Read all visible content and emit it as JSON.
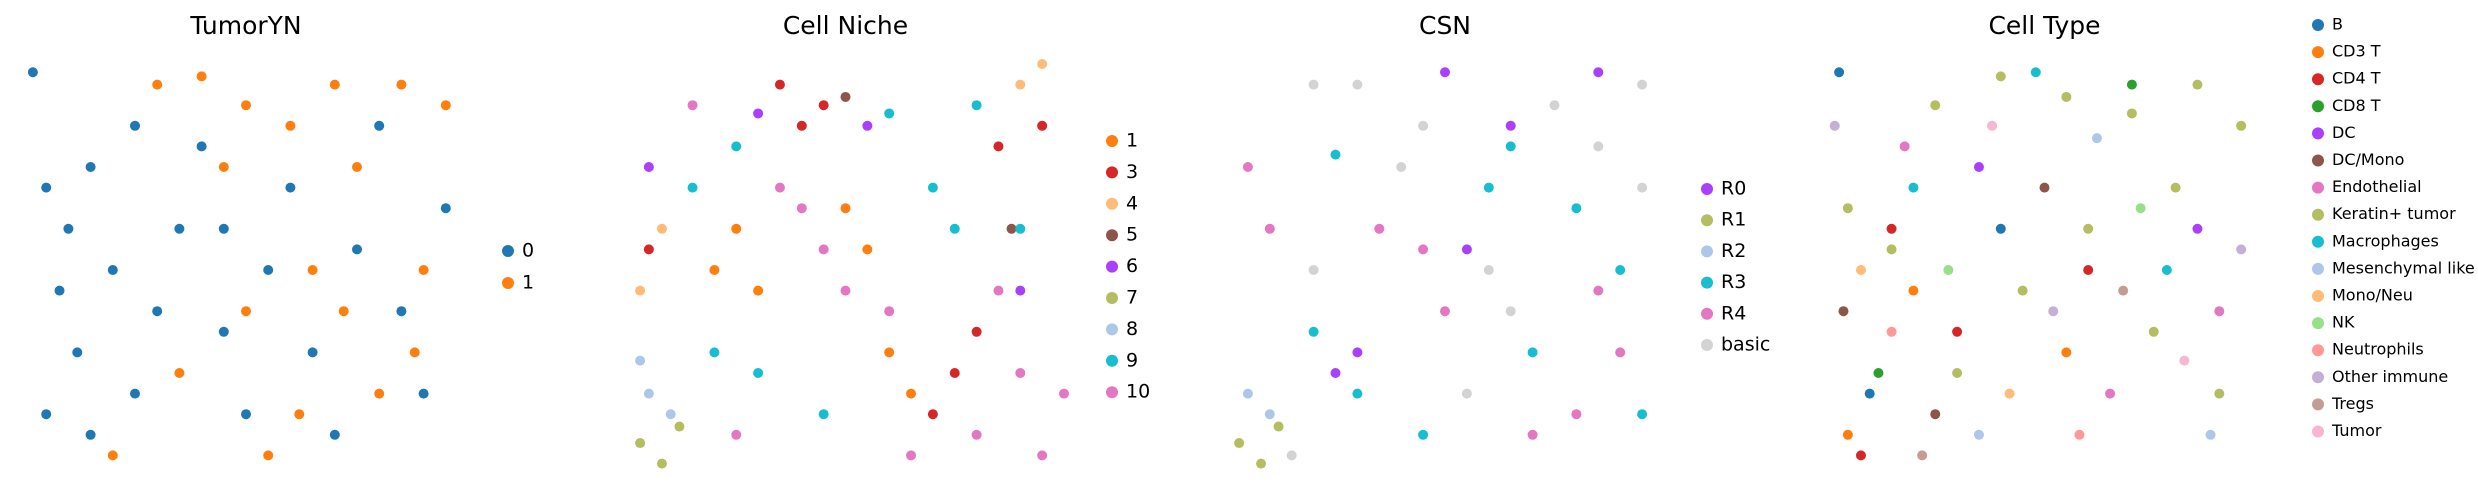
{
  "chart_data": [
    {
      "type": "scatter",
      "title": "TumorYN",
      "xlim": [
        0,
        100
      ],
      "ylim": [
        0,
        100
      ],
      "series": [
        {
          "name": "0",
          "color": "#1f77b4",
          "x": [
            5,
            10,
            15,
            8,
            20,
            12,
            5,
            15,
            25,
            30,
            35,
            40,
            45,
            50,
            55,
            60,
            65,
            70,
            75,
            80,
            85,
            90,
            95,
            25,
            45,
            2
          ],
          "values": [
            70,
            60,
            75,
            45,
            50,
            30,
            15,
            10,
            20,
            40,
            60,
            80,
            35,
            15,
            50,
            70,
            30,
            10,
            55,
            85,
            40,
            20,
            65,
            85,
            60,
            98
          ]
        },
        {
          "name": "1",
          "color": "#ff7f0e",
          "x": [
            30,
            40,
            50,
            60,
            70,
            85,
            95,
            75,
            90,
            80,
            65,
            50,
            35,
            20,
            55,
            88,
            72,
            45,
            62
          ],
          "values": [
            95,
            97,
            90,
            85,
            95,
            95,
            90,
            75,
            50,
            20,
            50,
            40,
            25,
            5,
            5,
            30,
            40,
            75,
            15
          ]
        }
      ]
    },
    {
      "type": "scatter",
      "title": "Cell Niche",
      "xlim": [
        0,
        100
      ],
      "ylim": [
        0,
        100
      ],
      "series": [
        {
          "name": "1",
          "color": "#ff7f0e",
          "x": [
            20,
            25,
            30,
            60,
            65,
            55,
            50
          ],
          "values": [
            50,
            60,
            45,
            30,
            20,
            55,
            65
          ]
        },
        {
          "name": "3",
          "color": "#d62728",
          "x": [
            35,
            45,
            40,
            85,
            95,
            75,
            80,
            5,
            70
          ],
          "values": [
            95,
            90,
            85,
            80,
            85,
            25,
            35,
            55,
            15
          ]
        },
        {
          "name": "4",
          "color": "#ffbb78",
          "x": [
            3,
            8,
            90,
            95
          ],
          "values": [
            45,
            60,
            95,
            100
          ]
        },
        {
          "name": "5",
          "color": "#8c564b",
          "x": [
            50,
            88
          ],
          "values": [
            92,
            60
          ]
        },
        {
          "name": "6",
          "color": "#aa40fc",
          "x": [
            55,
            30,
            90,
            5
          ],
          "values": [
            85,
            88,
            45,
            75
          ]
        },
        {
          "name": "7",
          "color": "#b5bd61",
          "x": [
            3,
            8,
            12
          ],
          "values": [
            8,
            3,
            12
          ]
        },
        {
          "name": "8",
          "color": "#aec7e8",
          "x": [
            5,
            10,
            3
          ],
          "values": [
            20,
            15,
            28
          ]
        },
        {
          "name": "9",
          "color": "#17becf",
          "x": [
            25,
            15,
            30,
            45,
            20,
            70,
            80,
            75,
            90,
            60
          ],
          "values": [
            80,
            70,
            25,
            15,
            30,
            70,
            90,
            60,
            60,
            88
          ]
        },
        {
          "name": "10",
          "color": "#e377c2",
          "x": [
            15,
            40,
            45,
            50,
            35,
            65,
            80,
            90,
            85,
            60,
            25,
            100,
            95
          ],
          "values": [
            90,
            65,
            55,
            45,
            70,
            5,
            10,
            25,
            45,
            40,
            10,
            20,
            5
          ]
        }
      ]
    },
    {
      "type": "scatter",
      "title": "CSN",
      "xlim": [
        0,
        100
      ],
      "ylim": [
        0,
        100
      ],
      "series": [
        {
          "name": "R0",
          "color": "#aa40fc",
          "x": [
            50,
            65,
            30,
            25,
            55,
            85
          ],
          "values": [
            98,
            85,
            30,
            25,
            55,
            98
          ]
        },
        {
          "name": "R1",
          "color": "#b5bd61",
          "x": [
            3,
            8,
            12
          ],
          "values": [
            8,
            3,
            12
          ]
        },
        {
          "name": "R2",
          "color": "#aec7e8",
          "x": [
            5,
            10
          ],
          "values": [
            20,
            15
          ]
        },
        {
          "name": "R3",
          "color": "#17becf",
          "x": [
            20,
            30,
            25,
            60,
            65,
            80,
            90,
            70,
            45,
            95
          ],
          "values": [
            35,
            20,
            78,
            70,
            80,
            65,
            50,
            30,
            10,
            15
          ]
        },
        {
          "name": "R4",
          "color": "#e377c2",
          "x": [
            5,
            10,
            35,
            45,
            50,
            80,
            70,
            90,
            85
          ],
          "values": [
            75,
            60,
            60,
            55,
            40,
            15,
            10,
            30,
            45
          ]
        },
        {
          "name": "basic",
          "color": "#d3d3d3",
          "x": [
            30,
            45,
            40,
            20,
            60,
            75,
            95,
            55,
            15,
            65,
            95,
            85,
            20
          ],
          "values": [
            95,
            85,
            75,
            50,
            50,
            90,
            95,
            20,
            5,
            40,
            70,
            80,
            95
          ]
        }
      ]
    },
    {
      "type": "scatter",
      "title": "Cell Type",
      "xlim": [
        0,
        100
      ],
      "ylim": [
        0,
        100
      ],
      "series": [
        {
          "name": "B",
          "color": "#1f77b4",
          "x": [
            3,
            10,
            40
          ],
          "values": [
            98,
            20,
            60
          ]
        },
        {
          "name": "CD3 T",
          "color": "#ff7f0e",
          "x": [
            5,
            20,
            55
          ],
          "values": [
            10,
            45,
            30
          ]
        },
        {
          "name": "CD4 T",
          "color": "#d62728",
          "x": [
            8,
            15,
            30,
            60
          ],
          "values": [
            5,
            60,
            35,
            50
          ]
        },
        {
          "name": "CD8 T",
          "color": "#2ca02c",
          "x": [
            12,
            70
          ],
          "values": [
            25,
            95
          ]
        },
        {
          "name": "DC",
          "color": "#aa40fc",
          "x": [
            35,
            85
          ],
          "values": [
            75,
            60
          ]
        },
        {
          "name": "DC/Mono",
          "color": "#8c564b",
          "x": [
            4,
            25,
            50
          ],
          "values": [
            40,
            15,
            70
          ]
        },
        {
          "name": "Endothelial",
          "color": "#e377c2",
          "x": [
            18,
            65,
            90
          ],
          "values": [
            80,
            20,
            40
          ]
        },
        {
          "name": "Keratin+ tumor",
          "color": "#b5bd61",
          "x": [
            40,
            55,
            70,
            85,
            95,
            15,
            30,
            45,
            60,
            75,
            90,
            5,
            25,
            80
          ],
          "values": [
            97,
            92,
            88,
            95,
            85,
            55,
            25,
            45,
            60,
            35,
            20,
            65,
            90,
            70
          ]
        },
        {
          "name": "Macrophages",
          "color": "#17becf",
          "x": [
            48,
            78,
            20
          ],
          "values": [
            98,
            50,
            70
          ]
        },
        {
          "name": "Mesenchymal like",
          "color": "#aec7e8",
          "x": [
            62,
            88,
            35
          ],
          "values": [
            82,
            10,
            10
          ]
        },
        {
          "name": "Mono/Neu",
          "color": "#ffbb78",
          "x": [
            8,
            42
          ],
          "values": [
            50,
            20
          ]
        },
        {
          "name": "NK",
          "color": "#98df8a",
          "x": [
            28,
            72
          ],
          "values": [
            50,
            65
          ]
        },
        {
          "name": "Neutrophils",
          "color": "#ff9896",
          "x": [
            15,
            58
          ],
          "values": [
            35,
            10
          ]
        },
        {
          "name": "Other immune",
          "color": "#c5b0d5",
          "x": [
            2,
            52,
            95
          ],
          "values": [
            85,
            40,
            55
          ]
        },
        {
          "name": "Tregs",
          "color": "#c49c94",
          "x": [
            22,
            68
          ],
          "values": [
            5,
            45
          ]
        },
        {
          "name": "Tumor",
          "color": "#f7b6d2",
          "x": [
            38,
            82
          ],
          "values": [
            85,
            28
          ]
        }
      ]
    }
  ]
}
